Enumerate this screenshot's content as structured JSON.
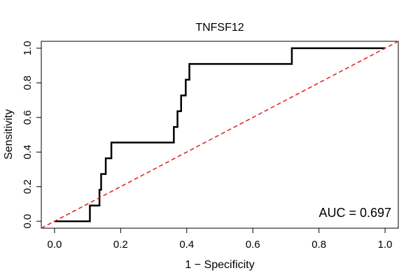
{
  "chart_data": {
    "type": "line",
    "title": "TNFSF12",
    "xlabel": "1 − Specificity",
    "ylabel": "Sensitivity",
    "xlim": [
      -0.04,
      1.04
    ],
    "ylim": [
      -0.04,
      1.04
    ],
    "x_ticks": [
      0.0,
      0.2,
      0.4,
      0.6,
      0.8,
      1.0
    ],
    "y_ticks": [
      0.0,
      0.2,
      0.4,
      0.6,
      0.8,
      1.0
    ],
    "x_tick_labels": [
      "0.0",
      "0.2",
      "0.4",
      "0.6",
      "0.8",
      "1.0"
    ],
    "y_tick_labels": [
      "0.0",
      "0.2",
      "0.4",
      "0.6",
      "0.8",
      "1.0"
    ],
    "grid": false,
    "annotation": "AUC = 0.697",
    "series": [
      {
        "color": "#000000",
        "x": [
          0.0,
          0.107,
          0.107,
          0.136,
          0.136,
          0.141,
          0.141,
          0.155,
          0.155,
          0.172,
          0.172,
          0.361,
          0.361,
          0.372,
          0.372,
          0.383,
          0.383,
          0.397,
          0.397,
          0.408,
          0.408,
          0.718,
          0.718,
          1.0
        ],
        "y": [
          0.0,
          0.0,
          0.091,
          0.091,
          0.182,
          0.182,
          0.273,
          0.273,
          0.364,
          0.364,
          0.455,
          0.455,
          0.545,
          0.545,
          0.636,
          0.636,
          0.727,
          0.727,
          0.818,
          0.818,
          0.909,
          0.909,
          1.0,
          1.0
        ]
      },
      {
        "color": "#e41a1c",
        "style": "dashed",
        "x": [
          -0.04,
          1.04
        ],
        "y": [
          -0.04,
          1.04
        ]
      }
    ]
  }
}
